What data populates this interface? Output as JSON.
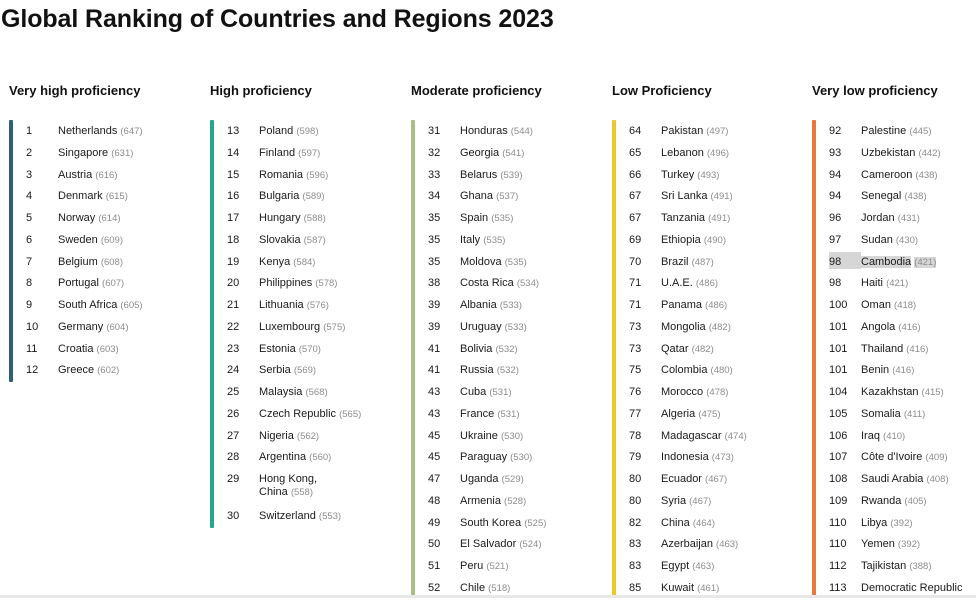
{
  "title": "Global Ranking of Countries and Regions 2023",
  "columns": [
    {
      "header": "Very high proficiency",
      "color": "#2e6178",
      "rows": [
        {
          "rank": "1",
          "name": "Netherlands",
          "score": "(647)"
        },
        {
          "rank": "2",
          "name": "Singapore",
          "score": "(631)"
        },
        {
          "rank": "3",
          "name": "Austria",
          "score": "(616)"
        },
        {
          "rank": "4",
          "name": "Denmark",
          "score": "(615)"
        },
        {
          "rank": "5",
          "name": "Norway",
          "score": "(614)"
        },
        {
          "rank": "6",
          "name": "Sweden",
          "score": "(609)"
        },
        {
          "rank": "7",
          "name": "Belgium",
          "score": "(608)"
        },
        {
          "rank": "8",
          "name": "Portugal",
          "score": "(607)"
        },
        {
          "rank": "9",
          "name": "South Africa",
          "score": "(605)"
        },
        {
          "rank": "10",
          "name": "Germany",
          "score": "(604)"
        },
        {
          "rank": "11",
          "name": "Croatia",
          "score": "(603)"
        },
        {
          "rank": "12",
          "name": "Greece",
          "score": "(602)"
        }
      ]
    },
    {
      "header": "High proficiency",
      "color": "#2aa58c",
      "rows": [
        {
          "rank": "13",
          "name": "Poland",
          "score": "(598)"
        },
        {
          "rank": "14",
          "name": "Finland",
          "score": "(597)"
        },
        {
          "rank": "15",
          "name": "Romania",
          "score": "(596)"
        },
        {
          "rank": "16",
          "name": "Bulgaria",
          "score": "(589)"
        },
        {
          "rank": "17",
          "name": "Hungary",
          "score": "(588)"
        },
        {
          "rank": "18",
          "name": "Slovakia",
          "score": "(587)"
        },
        {
          "rank": "19",
          "name": "Kenya",
          "score": "(584)"
        },
        {
          "rank": "20",
          "name": "Philippines",
          "score": "(578)"
        },
        {
          "rank": "21",
          "name": "Lithuania",
          "score": "(576)"
        },
        {
          "rank": "22",
          "name": "Luxembourg",
          "score": "(575)"
        },
        {
          "rank": "23",
          "name": "Estonia",
          "score": "(570)"
        },
        {
          "rank": "24",
          "name": "Serbia",
          "score": "(569)"
        },
        {
          "rank": "25",
          "name": "Malaysia",
          "score": "(568)"
        },
        {
          "rank": "26",
          "name": "Czech Republic",
          "score": "(565)"
        },
        {
          "rank": "27",
          "name": "Nigeria",
          "score": "(562)"
        },
        {
          "rank": "28",
          "name": "Argentina",
          "score": "(560)"
        },
        {
          "rank": "29",
          "name": "Hong Kong,",
          "name2": "China",
          "score": "(558)"
        },
        {
          "rank": "30",
          "name": "Switzerland",
          "score": "(553)"
        }
      ]
    },
    {
      "header": "Moderate proficiency",
      "color": "#a9bd86",
      "rows": [
        {
          "rank": "31",
          "name": "Honduras",
          "score": "(544)"
        },
        {
          "rank": "32",
          "name": "Georgia",
          "score": "(541)"
        },
        {
          "rank": "33",
          "name": "Belarus",
          "score": "(539)"
        },
        {
          "rank": "34",
          "name": "Ghana",
          "score": "(537)"
        },
        {
          "rank": "35",
          "name": "Spain",
          "score": "(535)"
        },
        {
          "rank": "35",
          "name": "Italy",
          "score": "(535)"
        },
        {
          "rank": "35",
          "name": "Moldova",
          "score": "(535)"
        },
        {
          "rank": "38",
          "name": "Costa Rica",
          "score": "(534)"
        },
        {
          "rank": "39",
          "name": "Albania",
          "score": "(533)"
        },
        {
          "rank": "39",
          "name": "Uruguay",
          "score": "(533)"
        },
        {
          "rank": "41",
          "name": "Bolivia",
          "score": "(532)"
        },
        {
          "rank": "41",
          "name": "Russia",
          "score": "(532)"
        },
        {
          "rank": "43",
          "name": "Cuba",
          "score": "(531)"
        },
        {
          "rank": "43",
          "name": "France",
          "score": "(531)"
        },
        {
          "rank": "45",
          "name": "Ukraine",
          "score": "(530)"
        },
        {
          "rank": "45",
          "name": "Paraguay",
          "score": "(530)"
        },
        {
          "rank": "47",
          "name": "Uganda",
          "score": "(529)"
        },
        {
          "rank": "48",
          "name": "Armenia",
          "score": "(528)"
        },
        {
          "rank": "49",
          "name": "South Korea",
          "score": "(525)"
        },
        {
          "rank": "50",
          "name": "El Salvador",
          "score": "(524)"
        },
        {
          "rank": "51",
          "name": "Peru",
          "score": "(521)"
        },
        {
          "rank": "52",
          "name": "Chile",
          "score": "(518)"
        }
      ]
    },
    {
      "header": "Low Proficiency",
      "color": "#ecc72e",
      "rows": [
        {
          "rank": "64",
          "name": "Pakistan",
          "score": "(497)"
        },
        {
          "rank": "65",
          "name": "Lebanon",
          "score": "(496)"
        },
        {
          "rank": "66",
          "name": "Turkey",
          "score": "(493)"
        },
        {
          "rank": "67",
          "name": "Sri Lanka",
          "score": "(491)"
        },
        {
          "rank": "67",
          "name": "Tanzania",
          "score": "(491)"
        },
        {
          "rank": "69",
          "name": "Ethiopia",
          "score": "(490)"
        },
        {
          "rank": "70",
          "name": "Brazil",
          "score": "(487)"
        },
        {
          "rank": "71",
          "name": "U.A.E.",
          "score": "(486)"
        },
        {
          "rank": "71",
          "name": "Panama",
          "score": "(486)"
        },
        {
          "rank": "73",
          "name": "Mongolia",
          "score": "(482)"
        },
        {
          "rank": "73",
          "name": "Qatar",
          "score": "(482)"
        },
        {
          "rank": "75",
          "name": "Colombia",
          "score": "(480)"
        },
        {
          "rank": "76",
          "name": "Morocco",
          "score": "(478)"
        },
        {
          "rank": "77",
          "name": "Algeria",
          "score": "(475)"
        },
        {
          "rank": "78",
          "name": "Madagascar",
          "score": "(474)"
        },
        {
          "rank": "79",
          "name": "Indonesia",
          "score": "(473)"
        },
        {
          "rank": "80",
          "name": "Ecuador",
          "score": "(467)"
        },
        {
          "rank": "80",
          "name": "Syria",
          "score": "(467)"
        },
        {
          "rank": "82",
          "name": "China",
          "score": "(464)"
        },
        {
          "rank": "83",
          "name": "Azerbaijan",
          "score": "(463)"
        },
        {
          "rank": "83",
          "name": "Egypt",
          "score": "(463)"
        },
        {
          "rank": "85",
          "name": "Kuwait",
          "score": "(461)"
        }
      ]
    },
    {
      "header": "Very low proficiency",
      "color": "#e8783e",
      "rows": [
        {
          "rank": "92",
          "name": "Palestine",
          "score": "(445)"
        },
        {
          "rank": "93",
          "name": "Uzbekistan",
          "score": "(442)"
        },
        {
          "rank": "94",
          "name": "Cameroon",
          "score": "(438)"
        },
        {
          "rank": "94",
          "name": "Senegal",
          "score": "(438)"
        },
        {
          "rank": "96",
          "name": "Jordan",
          "score": "(431)"
        },
        {
          "rank": "97",
          "name": "Sudan",
          "score": "(430)"
        },
        {
          "rank": "98",
          "name": "Cambodia",
          "score": "(421)",
          "highlighted": true
        },
        {
          "rank": "98",
          "name": "Haiti",
          "score": "(421)"
        },
        {
          "rank": "100",
          "name": "Oman",
          "score": "(418)"
        },
        {
          "rank": "101",
          "name": "Angola",
          "score": "(416)"
        },
        {
          "rank": "101",
          "name": "Thailand",
          "score": "(416)"
        },
        {
          "rank": "101",
          "name": "Benin",
          "score": "(416)"
        },
        {
          "rank": "104",
          "name": "Kazakhstan",
          "score": "(415)"
        },
        {
          "rank": "105",
          "name": "Somalia",
          "score": "(411)"
        },
        {
          "rank": "106",
          "name": "Iraq",
          "score": "(410)"
        },
        {
          "rank": "107",
          "name": "Côte d'Ivoire",
          "score": "(409)"
        },
        {
          "rank": "108",
          "name": "Saudi Arabia",
          "score": "(408)"
        },
        {
          "rank": "109",
          "name": "Rwanda",
          "score": "(405)"
        },
        {
          "rank": "110",
          "name": "Libya",
          "score": "(392)"
        },
        {
          "rank": "110",
          "name": "Yemen",
          "score": "(392)"
        },
        {
          "rank": "112",
          "name": "Tajikistan",
          "score": "(388)"
        },
        {
          "rank": "113",
          "name": "Democratic Republic",
          "score": ""
        }
      ]
    }
  ]
}
